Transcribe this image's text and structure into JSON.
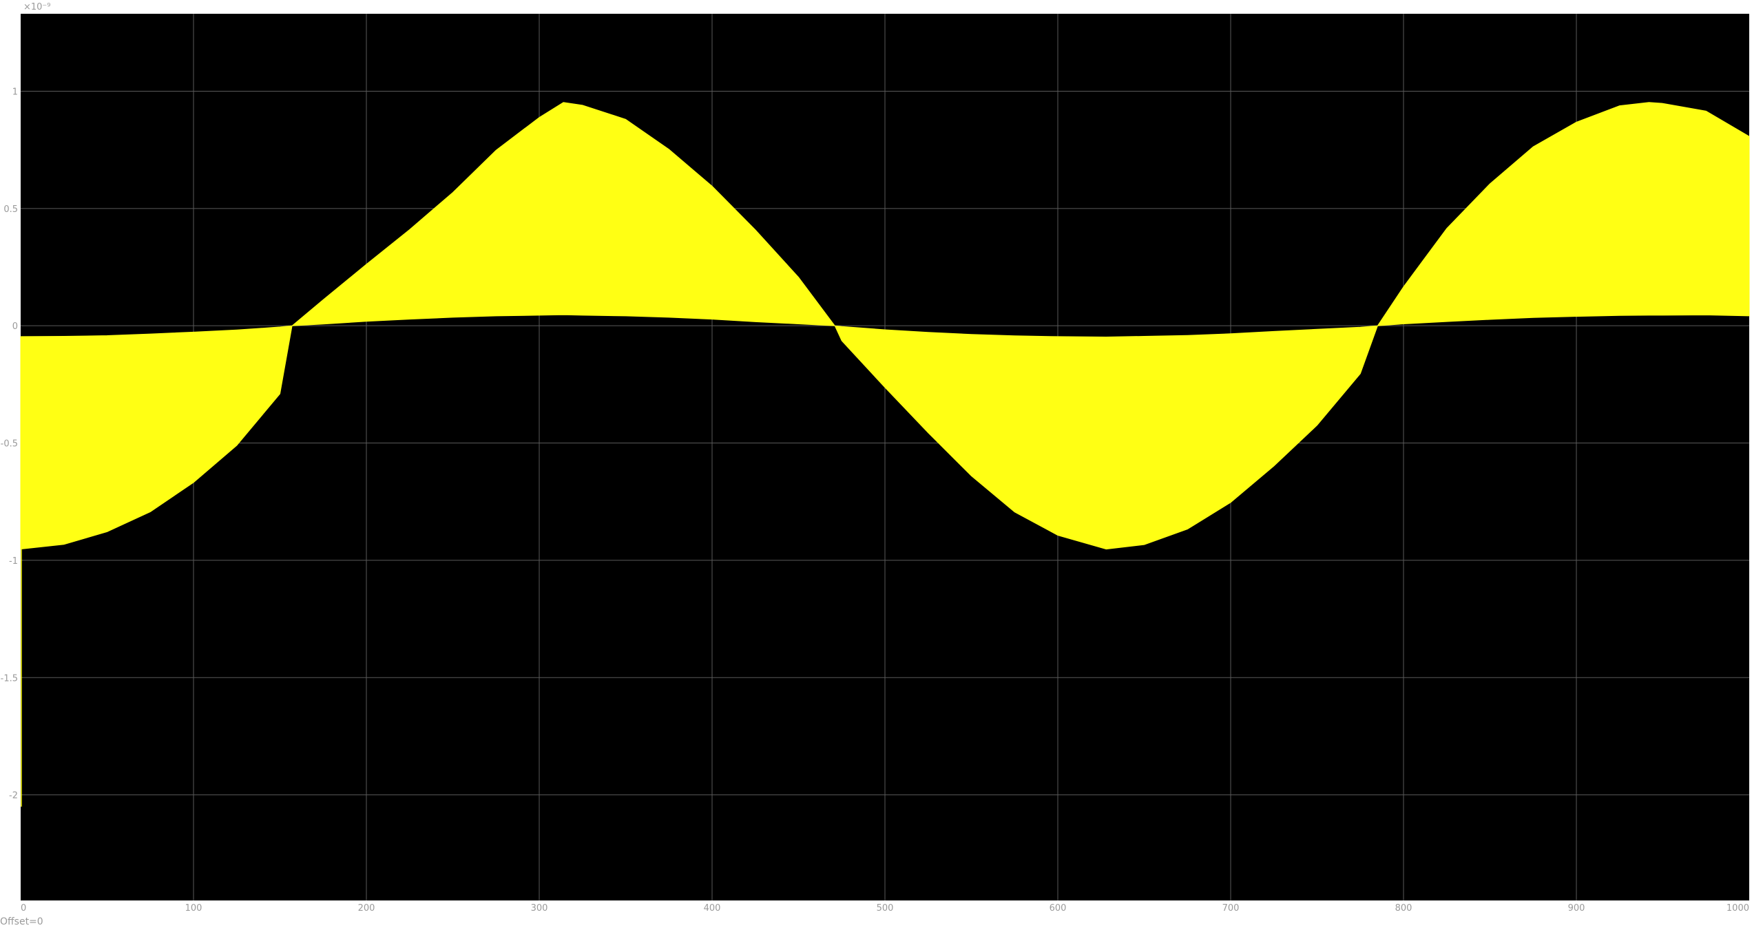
{
  "chart_data": {
    "type": "area",
    "title": "",
    "xlabel": "",
    "ylabel": "",
    "xlim": [
      0,
      1000
    ],
    "ylim": [
      -2.45,
      1.33
    ],
    "y_exponent_label": "×10⁻⁹",
    "x_ticks": [
      "0",
      "100",
      "200",
      "300",
      "400",
      "500",
      "600",
      "700",
      "800",
      "900",
      "1000"
    ],
    "y_ticks": [
      "1",
      "0.5",
      "0",
      "-0.5",
      "-1",
      "-1.5",
      "-2"
    ],
    "grid": true,
    "background": "#000000",
    "plot_color": "#ffff14",
    "grid_color": "#5a5a5a",
    "series": [
      {
        "x": [
          0,
          25,
          50,
          75,
          100,
          125,
          150,
          157,
          175,
          200,
          225,
          250,
          275,
          300,
          314,
          325,
          350,
          375,
          400,
          425,
          450,
          471,
          475,
          500,
          525,
          550,
          575,
          600,
          628,
          650,
          675,
          700,
          725,
          750,
          775,
          785,
          800,
          825,
          850,
          875,
          900,
          925,
          942,
          950,
          975,
          1000
        ],
        "upper": [
          -0.046,
          -0.045,
          -0.042,
          -0.035,
          -0.027,
          -0.018,
          -0.005,
          0.0,
          0.111,
          0.262,
          0.41,
          0.568,
          0.748,
          0.888,
          0.952,
          0.94,
          0.88,
          0.752,
          0.595,
          0.409,
          0.207,
          0.0,
          -0.003,
          -0.017,
          -0.028,
          -0.037,
          -0.043,
          -0.046,
          -0.048,
          -0.045,
          -0.041,
          -0.034,
          -0.024,
          -0.015,
          -0.006,
          0.0,
          0.166,
          0.415,
          0.605,
          0.763,
          0.868,
          0.938,
          0.952,
          0.948,
          0.915,
          0.807
        ],
        "lower": [
          -0.952,
          -0.932,
          -0.878,
          -0.793,
          -0.668,
          -0.51,
          -0.29,
          0.0,
          0.007,
          0.019,
          0.028,
          0.036,
          0.042,
          0.045,
          0.047,
          0.045,
          0.042,
          0.036,
          0.028,
          0.017,
          0.008,
          0.0,
          -0.064,
          -0.263,
          -0.456,
          -0.64,
          -0.794,
          -0.893,
          -0.952,
          -0.933,
          -0.867,
          -0.753,
          -0.598,
          -0.424,
          -0.204,
          0.0,
          0.008,
          0.018,
          0.027,
          0.035,
          0.04,
          0.044,
          0.045,
          0.045,
          0.046,
          0.042
        ]
      }
    ]
  },
  "footer": {
    "offset_label": "Offset=0"
  }
}
